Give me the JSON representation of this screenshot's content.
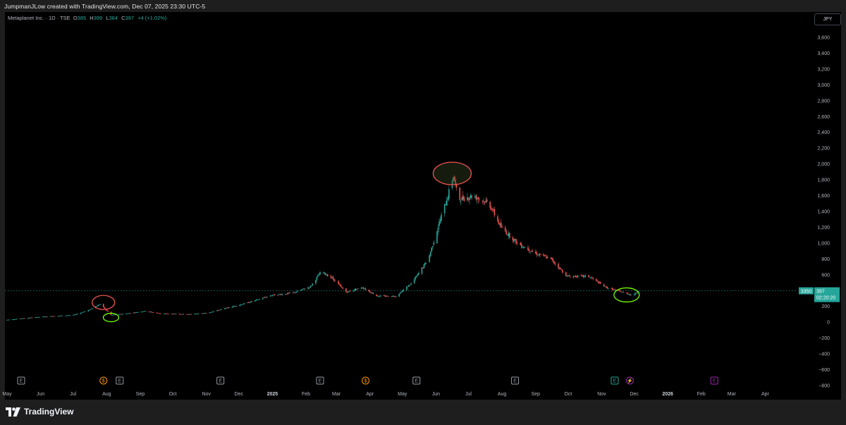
{
  "caption": "JumpmanJLow created with TradingView.com, Dec 07, 2025 23:30 UTC-5",
  "legend": {
    "symbol": "Metaplanet Inc. · 1D · TSE",
    "o_key": "O",
    "o_val": "385",
    "h_key": "H",
    "h_val": "399",
    "l_key": "L",
    "l_val": "384",
    "c_key": "C",
    "c_val": "397",
    "change": "+4 (+1.02%)"
  },
  "currency_button": "JPY",
  "price_labels": {
    "left_value": "3350",
    "last_price": "397",
    "countdown": "02:20:20"
  },
  "brand": {
    "name": "TradingView"
  },
  "colors": {
    "up": "#26a69a",
    "down": "#ef5350",
    "background": "#000000",
    "chrome": "#1e1e1e",
    "ellipse_red": "#ef5350",
    "ellipse_green": "#76ff03",
    "event_earnings": "#9598a1",
    "event_dividend": "#ff9800",
    "event_split": "#9c27b0"
  },
  "events": [
    {
      "type": "earnings",
      "label": "E",
      "date": "2024-05-14"
    },
    {
      "type": "dividend",
      "label": "$",
      "date": "2024-07-29"
    },
    {
      "type": "earnings",
      "label": "E",
      "date": "2024-08-13"
    },
    {
      "type": "earnings",
      "label": "E",
      "date": "2024-11-14"
    },
    {
      "type": "earnings",
      "label": "E",
      "date": "2025-02-14"
    },
    {
      "type": "dividend",
      "label": "$",
      "date": "2025-03-28"
    },
    {
      "type": "earnings",
      "label": "E",
      "date": "2025-05-14"
    },
    {
      "type": "earnings",
      "label": "E",
      "date": "2025-08-13"
    },
    {
      "type": "earnings",
      "label": "E",
      "date": "2025-11-13",
      "upcoming": true
    },
    {
      "type": "split",
      "label": "⚡",
      "date": "2025-11-27"
    },
    {
      "type": "earnings",
      "label": "E",
      "date": "2026-02-13",
      "future": true
    }
  ],
  "annotations": [
    {
      "shape": "ellipse",
      "color": "red",
      "date": "2024-07-29",
      "price": 250
    },
    {
      "shape": "ellipse",
      "color": "green",
      "date": "2024-08-05",
      "price": 60
    },
    {
      "shape": "ellipse",
      "color": "red",
      "date": "2025-06-16",
      "price": 1880
    },
    {
      "shape": "ellipse",
      "color": "green",
      "date": "2025-11-24",
      "price": 345
    }
  ],
  "chart_data": {
    "type": "candlestick",
    "title": "",
    "xlabel": "",
    "ylabel": "",
    "currency": "JPY",
    "ylim": [
      -800,
      3600
    ],
    "y_ticks": [
      -800,
      -600,
      -400,
      -200,
      0,
      200,
      400,
      600,
      800,
      1000,
      1200,
      1400,
      1600,
      1800,
      2000,
      2200,
      2400,
      2600,
      2800,
      3000,
      3200,
      3400,
      3600
    ],
    "y_tick_labels": [
      "−800",
      "−600",
      "−400",
      "−200",
      "0",
      "200",
      "400",
      "600",
      "800",
      "1,000",
      "1,200",
      "1,400",
      "1,600",
      "1,800",
      "2,000",
      "2,200",
      "2,400",
      "2,600",
      "2,800",
      "3,000",
      "3,200",
      "3,400",
      "3,600"
    ],
    "x_ticks": [
      {
        "date": "2024-05-01",
        "label": "May"
      },
      {
        "date": "2024-06-01",
        "label": "Jun"
      },
      {
        "date": "2024-07-01",
        "label": "Jul"
      },
      {
        "date": "2024-08-01",
        "label": "Aug"
      },
      {
        "date": "2024-09-01",
        "label": "Sep"
      },
      {
        "date": "2024-10-01",
        "label": "Oct"
      },
      {
        "date": "2024-11-01",
        "label": "Nov"
      },
      {
        "date": "2024-12-01",
        "label": "Dec"
      },
      {
        "date": "2025-01-01",
        "label": "2025",
        "bold": true
      },
      {
        "date": "2025-02-01",
        "label": "Feb"
      },
      {
        "date": "2025-03-01",
        "label": "Mar"
      },
      {
        "date": "2025-04-01",
        "label": "Apr"
      },
      {
        "date": "2025-05-01",
        "label": "May"
      },
      {
        "date": "2025-06-01",
        "label": "Jun"
      },
      {
        "date": "2025-07-01",
        "label": "Jul"
      },
      {
        "date": "2025-08-01",
        "label": "Aug"
      },
      {
        "date": "2025-09-01",
        "label": "Sep"
      },
      {
        "date": "2025-10-01",
        "label": "Oct"
      },
      {
        "date": "2025-11-01",
        "label": "Nov"
      },
      {
        "date": "2025-12-01",
        "label": "Dec"
      },
      {
        "date": "2026-01-01",
        "label": "2026",
        "bold": true
      },
      {
        "date": "2026-02-01",
        "label": "Feb"
      },
      {
        "date": "2026-03-01",
        "label": "Mar"
      },
      {
        "date": "2026-04-01",
        "label": "Apr"
      }
    ],
    "x_range": [
      "2024-05-01",
      "2026-04-30"
    ],
    "last_price": 397,
    "price_path": [
      [
        "2024-05-01",
        30
      ],
      [
        "2024-05-20",
        55
      ],
      [
        "2024-06-10",
        75
      ],
      [
        "2024-07-01",
        90
      ],
      [
        "2024-07-15",
        150
      ],
      [
        "2024-07-26",
        230
      ],
      [
        "2024-08-05",
        90
      ],
      [
        "2024-08-20",
        110
      ],
      [
        "2024-09-05",
        140
      ],
      [
        "2024-09-20",
        110
      ],
      [
        "2024-10-15",
        100
      ],
      [
        "2024-11-01",
        115
      ],
      [
        "2024-11-20",
        180
      ],
      [
        "2024-12-10",
        250
      ],
      [
        "2024-12-31",
        340
      ],
      [
        "2025-01-20",
        370
      ],
      [
        "2025-02-05",
        450
      ],
      [
        "2025-02-15",
        640
      ],
      [
        "2025-02-25",
        560
      ],
      [
        "2025-03-10",
        380
      ],
      [
        "2025-03-25",
        440
      ],
      [
        "2025-04-08",
        330
      ],
      [
        "2025-04-25",
        330
      ],
      [
        "2025-05-10",
        500
      ],
      [
        "2025-05-25",
        800
      ],
      [
        "2025-06-05",
        1300
      ],
      [
        "2025-06-12",
        1600
      ],
      [
        "2025-06-17",
        1850
      ],
      [
        "2025-06-22",
        1550
      ],
      [
        "2025-07-05",
        1600
      ],
      [
        "2025-07-20",
        1500
      ],
      [
        "2025-07-31",
        1200
      ],
      [
        "2025-08-15",
        1000
      ],
      [
        "2025-09-01",
        870
      ],
      [
        "2025-09-15",
        800
      ],
      [
        "2025-09-30",
        580
      ],
      [
        "2025-10-20",
        580
      ],
      [
        "2025-11-05",
        440
      ],
      [
        "2025-11-15",
        400
      ],
      [
        "2025-11-30",
        340
      ],
      [
        "2025-12-05",
        397
      ]
    ]
  }
}
